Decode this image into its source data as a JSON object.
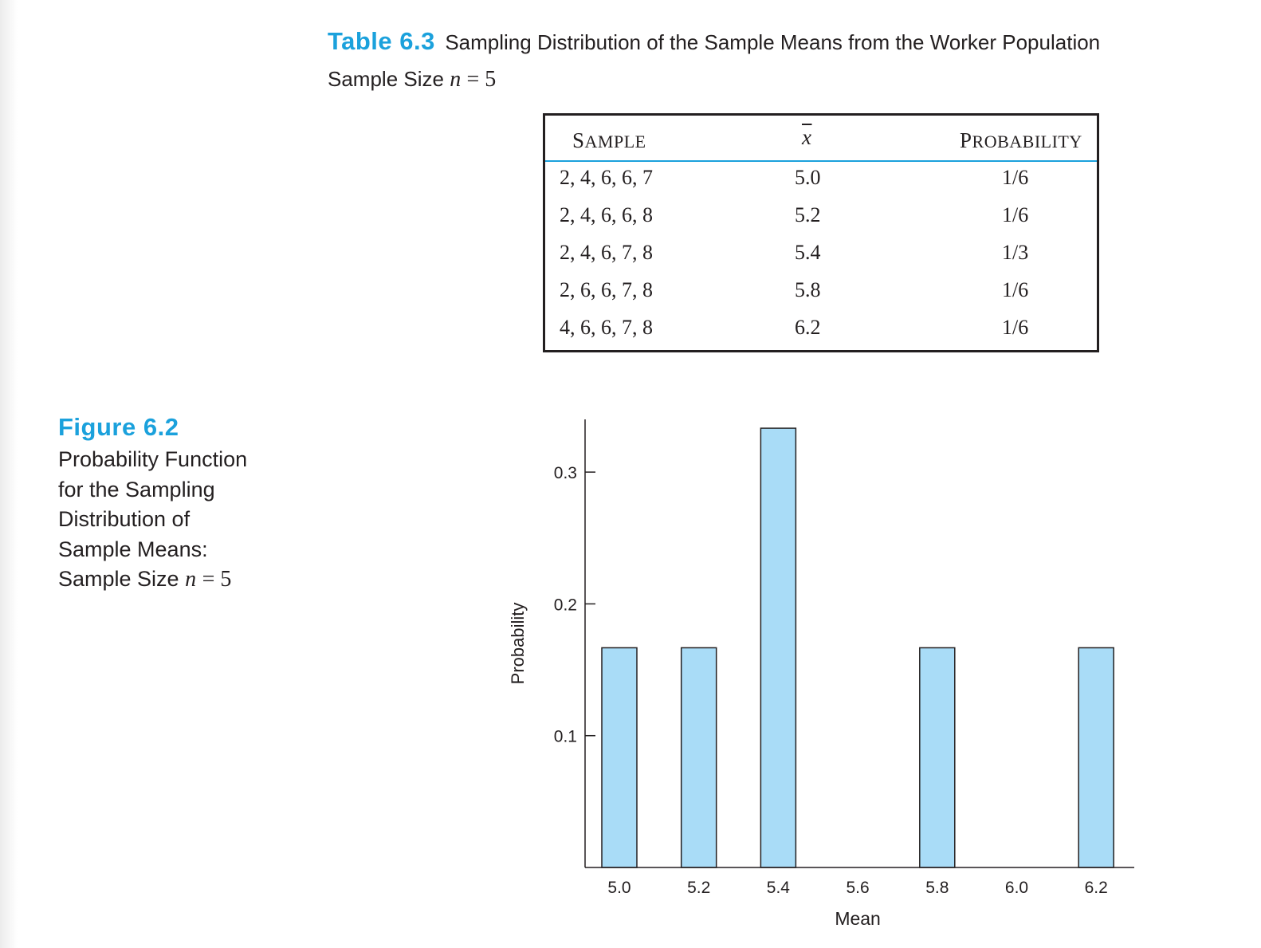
{
  "table": {
    "label": "Table 6.3",
    "title": "Sampling Distribution of the Sample Means from the Worker Population",
    "subtitle_prefix": "Sample Size",
    "subtitle_var": "n",
    "subtitle_eq": "= 5",
    "columns": {
      "sample_first": "S",
      "sample_rest": "AMPLE",
      "xbar": "x",
      "prob_first": "P",
      "prob_rest": "ROBABILITY"
    },
    "rows": [
      {
        "sample": "2, 4, 6, 6, 7",
        "xbar": "5.0",
        "probability": "1/6"
      },
      {
        "sample": "2, 4, 6, 6, 8",
        "xbar": "5.2",
        "probability": "1/6"
      },
      {
        "sample": "2, 4, 6, 7, 8",
        "xbar": "5.4",
        "probability": "1/3"
      },
      {
        "sample": "2, 6, 6, 7, 8",
        "xbar": "5.8",
        "probability": "1/6"
      },
      {
        "sample": "4, 6, 6, 7, 8",
        "xbar": "6.2",
        "probability": "1/6"
      }
    ]
  },
  "figure": {
    "label": "Figure 6.2",
    "lines": [
      "Probability Function",
      "for the Sampling",
      "Distribution of",
      "Sample Means:"
    ],
    "last_line_prefix": "Sample Size",
    "last_line_var": "n",
    "last_line_eq": "= 5"
  },
  "colors": {
    "accent": "#1ba1dc",
    "bar_fill": "#a9dcf7",
    "ink": "#231f20"
  },
  "chart_data": {
    "type": "bar",
    "categories": [
      "5.0",
      "5.2",
      "5.4",
      "5.6",
      "5.8",
      "6.0",
      "6.2"
    ],
    "values": [
      0.1667,
      0.1667,
      0.3333,
      0,
      0.1667,
      0,
      0.1667
    ],
    "title": "",
    "xlabel": "Mean",
    "ylabel": "Probability",
    "ylim": [
      0,
      0.34
    ],
    "yticks": [
      0.1,
      0.2,
      0.3
    ],
    "ytick_labels": [
      "0.1",
      "0.2",
      "0.3"
    ],
    "grid": false,
    "legend": "none"
  }
}
